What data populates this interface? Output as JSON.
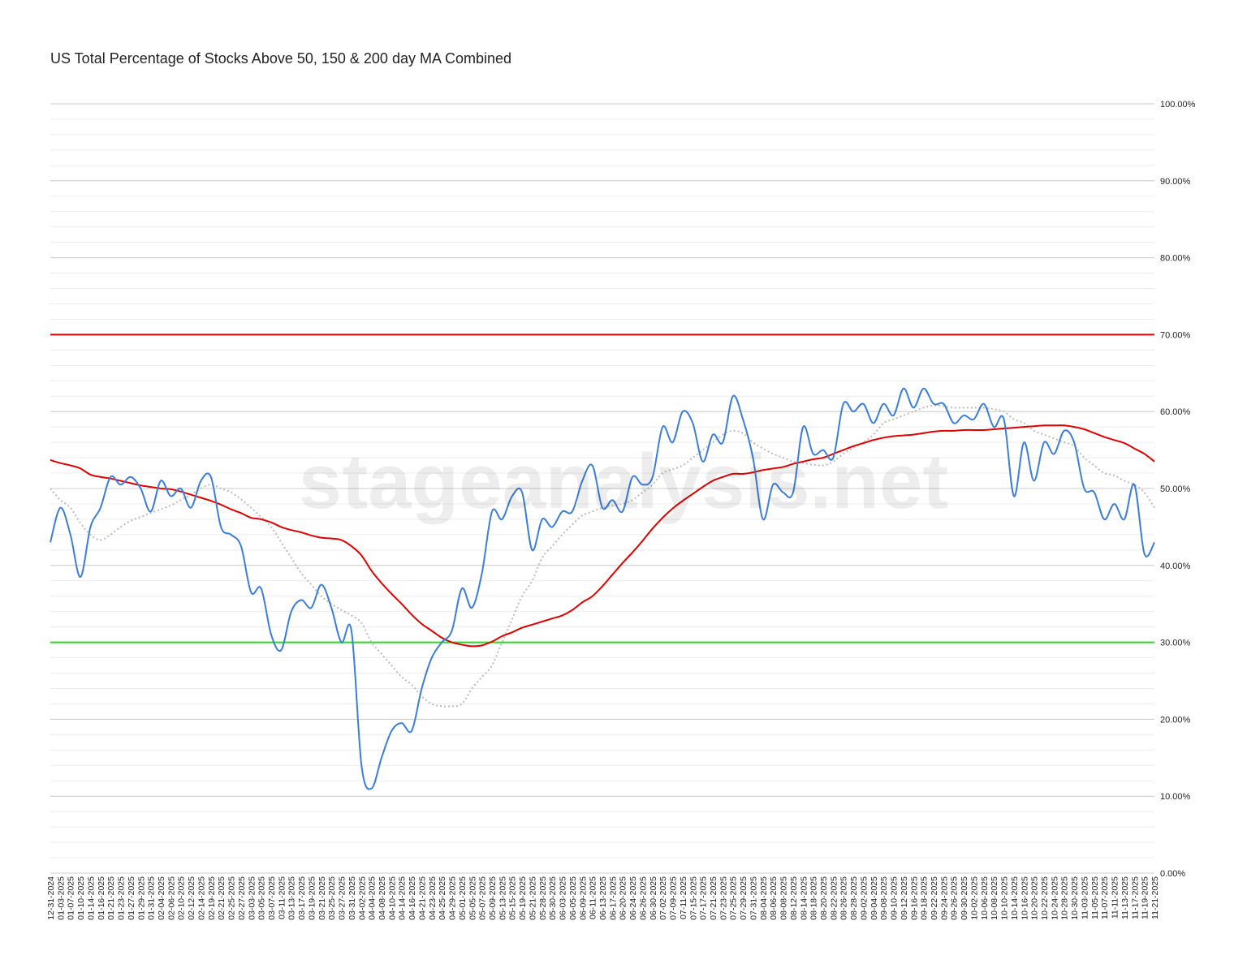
{
  "chart_data": {
    "type": "line",
    "title": "US Total Percentage of Stocks Above 50, 150 & 200 day MA Combined",
    "watermark": "stageanalysis.net",
    "categories": [
      "12-31-2024",
      "01-03-2025",
      "01-07-2025",
      "01-10-2025",
      "01-14-2025",
      "01-16-2025",
      "01-21-2025",
      "01-23-2025",
      "01-27-2025",
      "01-29-2025",
      "01-31-2025",
      "02-04-2025",
      "02-06-2025",
      "02-10-2025",
      "02-12-2025",
      "02-14-2025",
      "02-19-2025",
      "02-21-2025",
      "02-25-2025",
      "02-27-2025",
      "03-03-2025",
      "03-05-2025",
      "03-07-2025",
      "03-11-2025",
      "03-13-2025",
      "03-17-2025",
      "03-19-2025",
      "03-21-2025",
      "03-25-2025",
      "03-27-2025",
      "03-31-2025",
      "04-02-2025",
      "04-04-2025",
      "04-08-2025",
      "04-10-2025",
      "04-14-2025",
      "04-16-2025",
      "04-21-2025",
      "04-23-2025",
      "04-25-2025",
      "04-29-2025",
      "05-01-2025",
      "05-05-2025",
      "05-07-2025",
      "05-09-2025",
      "05-13-2025",
      "05-15-2025",
      "05-19-2025",
      "05-21-2025",
      "05-28-2025",
      "05-30-2025",
      "06-03-2025",
      "06-05-2025",
      "06-09-2025",
      "06-11-2025",
      "06-13-2025",
      "06-17-2025",
      "06-20-2025",
      "06-24-2025",
      "06-26-2025",
      "06-30-2025",
      "07-02-2025",
      "07-09-2025",
      "07-11-2025",
      "07-15-2025",
      "07-17-2025",
      "07-21-2025",
      "07-23-2025",
      "07-25-2025",
      "07-29-2025",
      "07-31-2025",
      "08-04-2025",
      "08-06-2025",
      "08-08-2025",
      "08-12-2025",
      "08-14-2025",
      "08-18-2025",
      "08-20-2025",
      "08-22-2025",
      "08-26-2025",
      "08-28-2025",
      "09-02-2025",
      "09-04-2025",
      "09-08-2025",
      "09-10-2025",
      "09-12-2025",
      "09-16-2025",
      "09-18-2025",
      "09-22-2025",
      "09-24-2025",
      "09-26-2025",
      "09-30-2025",
      "10-02-2025",
      "10-06-2025",
      "10-08-2025",
      "10-10-2025",
      "10-14-2025",
      "10-16-2025",
      "10-20-2025",
      "10-22-2025",
      "10-24-2025",
      "10-28-2025",
      "10-30-2025",
      "11-03-2025",
      "11-05-2025",
      "11-07-2025",
      "11-11-2025",
      "11-13-2025",
      "11-17-2025",
      "11-19-2025",
      "11-21-2025"
    ],
    "series": [
      {
        "color": "#bbbbbb",
        "dash": true,
        "values": [
          50,
          48.5,
          47.5,
          45.5,
          44,
          43.3,
          44,
          45,
          45.8,
          46.3,
          46.8,
          47.3,
          47.8,
          48.5,
          49.2,
          50,
          50.5,
          50,
          49.5,
          48.6,
          47.5,
          46.3,
          45,
          43,
          41,
          39,
          37.5,
          36,
          35,
          34.2,
          33.5,
          32.5,
          30,
          28.5,
          27,
          25.5,
          24.5,
          23,
          22,
          21.7,
          21.7,
          22,
          24,
          25.5,
          27,
          30,
          33,
          36,
          38,
          41,
          42.5,
          44,
          45.3,
          46.5,
          47,
          47.5,
          47.8,
          48,
          48.5,
          49.5,
          50.5,
          52,
          52.5,
          53,
          54,
          55,
          56,
          57,
          57.5,
          57.2,
          56,
          55.2,
          54.5,
          54,
          53.5,
          53.3,
          53.1,
          53,
          53.5,
          54.5,
          55.3,
          56,
          57,
          58.5,
          59,
          59.5,
          60,
          60.5,
          60.8,
          60.7,
          60.5,
          60.5,
          60.5,
          60.5,
          60.3,
          60,
          59,
          58.5,
          57.5,
          57,
          56.5,
          56,
          55.5,
          54,
          53,
          52,
          51.7,
          51,
          50.5,
          49.5,
          47.5
        ]
      },
      {
        "color": "#e00000",
        "dash": false,
        "values": [
          53.7,
          53.3,
          53,
          52.6,
          51.8,
          51.5,
          51.3,
          51,
          50.7,
          50.4,
          50.2,
          50,
          49.9,
          49.6,
          49.2,
          48.8,
          48.4,
          47.9,
          47.3,
          46.8,
          46.2,
          46,
          45.6,
          45,
          44.6,
          44.3,
          43.9,
          43.6,
          43.5,
          43.3,
          42.5,
          41.3,
          39.3,
          37.7,
          36.3,
          35,
          33.6,
          32.4,
          31.5,
          30.6,
          30,
          29.7,
          29.5,
          29.6,
          30.1,
          30.8,
          31.3,
          31.9,
          32.3,
          32.7,
          33.1,
          33.5,
          34.2,
          35.2,
          36,
          37.3,
          38.8,
          40.3,
          41.7,
          43.2,
          44.8,
          46.2,
          47.4,
          48.4,
          49.3,
          50.2,
          51,
          51.5,
          51.9,
          51.9,
          52.1,
          52.4,
          52.6,
          52.8,
          53.2,
          53.5,
          53.8,
          54,
          54.5,
          55,
          55.5,
          55.9,
          56.3,
          56.6,
          56.8,
          56.9,
          57,
          57.2,
          57.4,
          57.5,
          57.5,
          57.6,
          57.6,
          57.6,
          57.7,
          57.8,
          57.9,
          58,
          58.1,
          58.2,
          58.2,
          58.2,
          58,
          57.7,
          57.2,
          56.7,
          56.3,
          55.9,
          55.2,
          54.5,
          53.5
        ]
      },
      {
        "color": "#3b7ddd",
        "dash": false,
        "values": [
          43,
          47.5,
          44,
          38.5,
          45,
          47.5,
          51.5,
          50.5,
          51.5,
          50,
          47,
          51,
          49,
          50,
          47.5,
          51,
          51.5,
          45,
          44,
          42.5,
          36.5,
          37,
          31,
          29,
          34,
          35.5,
          34.5,
          37.5,
          34.5,
          30,
          31.5,
          14,
          11,
          15,
          18.5,
          19.5,
          18.5,
          24,
          28,
          30,
          31.5,
          37,
          34.5,
          39,
          47,
          46,
          49,
          49.5,
          42,
          46,
          45,
          47,
          47,
          51,
          53,
          47.5,
          48.5,
          47,
          51.5,
          50.5,
          51.5,
          58,
          56,
          60,
          58.5,
          53.5,
          57,
          56,
          62,
          59,
          54,
          46,
          50.5,
          49.5,
          49.5,
          58,
          54.5,
          55,
          54,
          61,
          60,
          61,
          58.5,
          61,
          59.5,
          63,
          60.5,
          63,
          61,
          61,
          58.5,
          59.5,
          59,
          61,
          58,
          59,
          49,
          56,
          51,
          56,
          54.5,
          57.5,
          56,
          50,
          49.5,
          46,
          48,
          46,
          50.5,
          41.5,
          43
        ]
      }
    ],
    "reference_lines": [
      {
        "value": 70,
        "color": "#e00000"
      },
      {
        "value": 30,
        "color": "#22dd22"
      }
    ],
    "ylim": [
      0,
      100
    ],
    "yticks": [
      {
        "value": 0,
        "label": "0.00%"
      },
      {
        "value": 10,
        "label": "10.00%"
      },
      {
        "value": 20,
        "label": "20.00%"
      },
      {
        "value": 30,
        "label": "30.00%"
      },
      {
        "value": 40,
        "label": "40.00%"
      },
      {
        "value": 50,
        "label": "50.00%"
      },
      {
        "value": 60,
        "label": "60.00%"
      },
      {
        "value": 70,
        "label": "70.00%"
      },
      {
        "value": 80,
        "label": "80.00%"
      },
      {
        "value": 90,
        "label": "90.00%"
      },
      {
        "value": 100,
        "label": "100.00%"
      }
    ],
    "minor_grid_step": 2,
    "grid": true
  }
}
